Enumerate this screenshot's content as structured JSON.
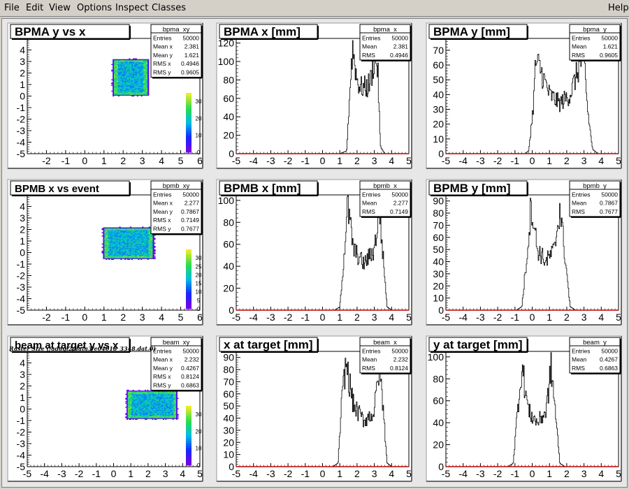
{
  "menu": [
    "File",
    "Edit",
    "View",
    "Options",
    "Inspect",
    "Classes",
    "Help"
  ],
  "caption": "Raster Size (/adaql2/data3/e04018_3348.dat.0)",
  "chart_data": [
    {
      "type": "heatmap",
      "title": "BPMA y vs x",
      "stats": {
        "name": "bpma_xy",
        "rows": [
          [
            "Entries",
            "50000"
          ],
          [
            "Mean x",
            "2.381"
          ],
          [
            "Mean y",
            "1.621"
          ],
          [
            "RMS x",
            "0.4946"
          ],
          [
            "RMS y",
            "0.9605"
          ]
        ]
      },
      "xlim": [
        -3,
        6
      ],
      "ylim": [
        -5,
        5
      ],
      "xticks": [
        -2,
        -1,
        0,
        1,
        2,
        3,
        4,
        5,
        6
      ],
      "yticks": [
        -5,
        -4,
        -3,
        -2,
        -1,
        0,
        1,
        2,
        3,
        4
      ],
      "z_ticks": [
        0,
        10,
        20,
        30
      ],
      "zmax": 35,
      "region": {
        "x": [
          1.5,
          3.2
        ],
        "y": [
          0.1,
          3.1
        ]
      }
    },
    {
      "type": "bar",
      "title": "BPMA x [mm]",
      "stats": {
        "name": "bpma_x",
        "rows": [
          [
            "Entries",
            "50000"
          ],
          [
            "Mean",
            "2.381"
          ],
          [
            "RMS",
            "0.4946"
          ]
        ]
      },
      "xlim": [
        -5,
        5
      ],
      "ylim": [
        0,
        125
      ],
      "xticks": [
        -5,
        -4,
        -3,
        -2,
        -1,
        0,
        1,
        2,
        3,
        4,
        5
      ],
      "yticks": [
        0,
        20,
        40,
        60,
        80,
        100,
        120
      ],
      "profile": {
        "x": [
          1.0,
          1.4,
          1.65,
          1.75,
          2.0,
          2.2,
          2.6,
          2.8,
          3.05,
          3.2,
          3.35,
          3.6
        ],
        "y": [
          0,
          3,
          92,
          115,
          80,
          72,
          72,
          80,
          108,
          90,
          8,
          0
        ]
      }
    },
    {
      "type": "bar",
      "title": "BPMA y [mm]",
      "stats": {
        "name": "bpma_y",
        "rows": [
          [
            "Entries",
            "50000"
          ],
          [
            "Mean",
            "1.621"
          ],
          [
            "RMS",
            "0.9605"
          ]
        ]
      },
      "xlim": [
        -5,
        5
      ],
      "ylim": [
        0,
        78
      ],
      "xticks": [
        -5,
        -4,
        -3,
        -2,
        -1,
        0,
        1,
        2,
        3,
        4,
        5
      ],
      "yticks": [
        0,
        10,
        20,
        30,
        40,
        50,
        60,
        70
      ],
      "profile": {
        "x": [
          -0.4,
          -0.2,
          0.05,
          0.2,
          0.45,
          1.0,
          1.6,
          2.2,
          2.7,
          3.0,
          3.2,
          3.5,
          3.8
        ],
        "y": [
          0,
          2,
          30,
          62,
          58,
          40,
          34,
          40,
          58,
          68,
          30,
          3,
          0
        ]
      }
    },
    {
      "type": "heatmap",
      "title": "BPMB x vs event",
      "stats": {
        "name": "bpmb_xy",
        "rows": [
          [
            "Entries",
            "50000"
          ],
          [
            "Mean x",
            "2.277"
          ],
          [
            "Mean y",
            "0.7867"
          ],
          [
            "RMS x",
            "0.7149"
          ],
          [
            "RMS y",
            "0.7677"
          ]
        ]
      },
      "xlim": [
        -3,
        6
      ],
      "ylim": [
        -5,
        5
      ],
      "xticks": [
        -2,
        -1,
        0,
        1,
        2,
        3,
        4,
        5,
        6
      ],
      "yticks": [
        -5,
        -4,
        -3,
        -2,
        -1,
        0,
        1,
        2,
        3,
        4
      ],
      "z_ticks": [
        0,
        5,
        10,
        15,
        20,
        25,
        30
      ],
      "zmax": 35,
      "region": {
        "x": [
          1.0,
          3.5
        ],
        "y": [
          -0.5,
          2.1
        ]
      }
    },
    {
      "type": "bar",
      "title": "BPMB x [mm]",
      "stats": {
        "name": "bpmb_x",
        "rows": [
          [
            "Entries",
            "50000"
          ],
          [
            "Mean",
            "2.277"
          ],
          [
            "RMS",
            "0.7149"
          ]
        ]
      },
      "xlim": [
        -5,
        5
      ],
      "ylim": [
        0,
        105
      ],
      "xticks": [
        -5,
        -4,
        -3,
        -2,
        -1,
        0,
        1,
        2,
        3,
        4,
        5
      ],
      "yticks": [
        0,
        20,
        40,
        60,
        80,
        100
      ],
      "profile": {
        "x": [
          0.7,
          1.0,
          1.25,
          1.45,
          1.8,
          2.4,
          3.0,
          3.3,
          3.5,
          3.75,
          4.0
        ],
        "y": [
          0,
          3,
          50,
          95,
          55,
          42,
          55,
          92,
          50,
          3,
          0
        ]
      }
    },
    {
      "type": "bar",
      "title": "BPMB y [mm]",
      "stats": {
        "name": "bpmb_y",
        "rows": [
          [
            "Entries",
            "50000"
          ],
          [
            "Mean",
            "0.7867"
          ],
          [
            "RMS",
            "0.7677"
          ]
        ]
      },
      "xlim": [
        -5,
        5
      ],
      "ylim": [
        0,
        95
      ],
      "xticks": [
        -5,
        -4,
        -3,
        -2,
        -1,
        0,
        1,
        2,
        3,
        4,
        5
      ],
      "yticks": [
        0,
        10,
        20,
        30,
        40,
        50,
        60,
        70,
        80,
        90
      ],
      "profile": {
        "x": [
          -0.9,
          -0.6,
          -0.3,
          -0.05,
          0.3,
          0.8,
          1.3,
          1.6,
          1.9,
          2.2,
          2.5
        ],
        "y": [
          0,
          3,
          45,
          88,
          50,
          40,
          50,
          85,
          45,
          3,
          0
        ]
      }
    },
    {
      "type": "heatmap",
      "title": "beam at target y vs x",
      "stats": {
        "name": "beam_xy",
        "rows": [
          [
            "Entries",
            "50000"
          ],
          [
            "Mean x",
            "2.232"
          ],
          [
            "Mean y",
            "0.4267"
          ],
          [
            "RMS x",
            "0.8124"
          ],
          [
            "RMS y",
            "0.6863"
          ]
        ]
      },
      "xlim": [
        -5,
        5
      ],
      "ylim": [
        -5,
        5
      ],
      "xticks": [
        -5,
        -4,
        -3,
        -2,
        -1,
        0,
        1,
        2,
        3,
        4,
        5
      ],
      "yticks": [
        -5,
        -4,
        -3,
        -2,
        -1,
        0,
        1,
        2,
        3,
        4
      ],
      "z_ticks": [
        0,
        10,
        20,
        30
      ],
      "zmax": 35,
      "region": {
        "x": [
          0.8,
          3.6
        ],
        "y": [
          -0.8,
          1.5
        ]
      }
    },
    {
      "type": "bar",
      "title": "x at target [mm]",
      "stats": {
        "name": "beam_x",
        "rows": [
          [
            "Entries",
            "50000"
          ],
          [
            "Mean",
            "2.232"
          ],
          [
            "RMS",
            "0.8124"
          ]
        ]
      },
      "xlim": [
        -5,
        5
      ],
      "ylim": [
        0,
        95
      ],
      "xticks": [
        -5,
        -4,
        -3,
        -2,
        -1,
        0,
        1,
        2,
        3,
        4,
        5
      ],
      "yticks": [
        0,
        10,
        20,
        30,
        40,
        50,
        60,
        70,
        80,
        90
      ],
      "profile": {
        "x": [
          0.6,
          0.9,
          1.1,
          1.35,
          1.8,
          2.4,
          3.0,
          3.3,
          3.5,
          3.75,
          4.0
        ],
        "y": [
          0,
          3,
          50,
          86,
          50,
          38,
          45,
          85,
          50,
          3,
          0
        ]
      }
    },
    {
      "type": "bar",
      "title": "y at target [mm]",
      "stats": {
        "name": "beam_y",
        "rows": [
          [
            "Entries",
            "50000"
          ],
          [
            "Mean",
            "0.4267"
          ],
          [
            "RMS",
            "0.6863"
          ]
        ]
      },
      "xlim": [
        -5,
        5
      ],
      "ylim": [
        0,
        105
      ],
      "xticks": [
        -5,
        -4,
        -3,
        -2,
        -1,
        0,
        1,
        2,
        3,
        4,
        5
      ],
      "yticks": [
        0,
        20,
        40,
        60,
        80,
        100
      ],
      "profile": {
        "x": [
          -1.4,
          -1.1,
          -0.85,
          -0.6,
          -0.2,
          0.3,
          0.8,
          1.1,
          1.35,
          1.6,
          1.9
        ],
        "y": [
          0,
          3,
          50,
          92,
          50,
          40,
          50,
          90,
          50,
          3,
          0
        ]
      }
    }
  ]
}
